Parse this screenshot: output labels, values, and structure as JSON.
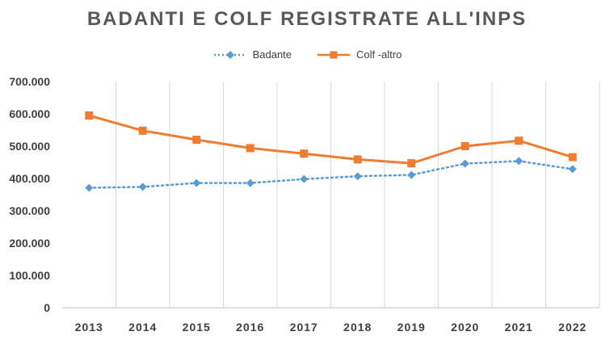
{
  "chart_data": {
    "type": "line",
    "title": "BADANTI E COLF REGISTRATE ALL'INPS",
    "xlabel": "",
    "ylabel": "",
    "categories": [
      "2013",
      "2014",
      "2015",
      "2016",
      "2017",
      "2018",
      "2019",
      "2020",
      "2021",
      "2022"
    ],
    "ylim": [
      0,
      700000
    ],
    "yticks": [
      0,
      100000,
      200000,
      300000,
      400000,
      500000,
      600000,
      700000
    ],
    "ytick_labels": [
      "0",
      "100.000",
      "200.000",
      "300.000",
      "400.000",
      "500.000",
      "600.000",
      "700.000"
    ],
    "grid": "vertical",
    "legend_position": "top",
    "series": [
      {
        "name": "Badante",
        "values": [
          371000,
          374000,
          386000,
          386000,
          398000,
          407000,
          411000,
          446000,
          454000,
          429000
        ],
        "color": "#5B9BD5",
        "line_style": "dotted",
        "marker": "diamond"
      },
      {
        "name": "Colf -altro",
        "values": [
          595000,
          548000,
          520000,
          494000,
          477000,
          459000,
          447000,
          500000,
          517000,
          466000
        ],
        "color": "#ED7D31",
        "line_style": "solid",
        "marker": "square"
      }
    ]
  }
}
